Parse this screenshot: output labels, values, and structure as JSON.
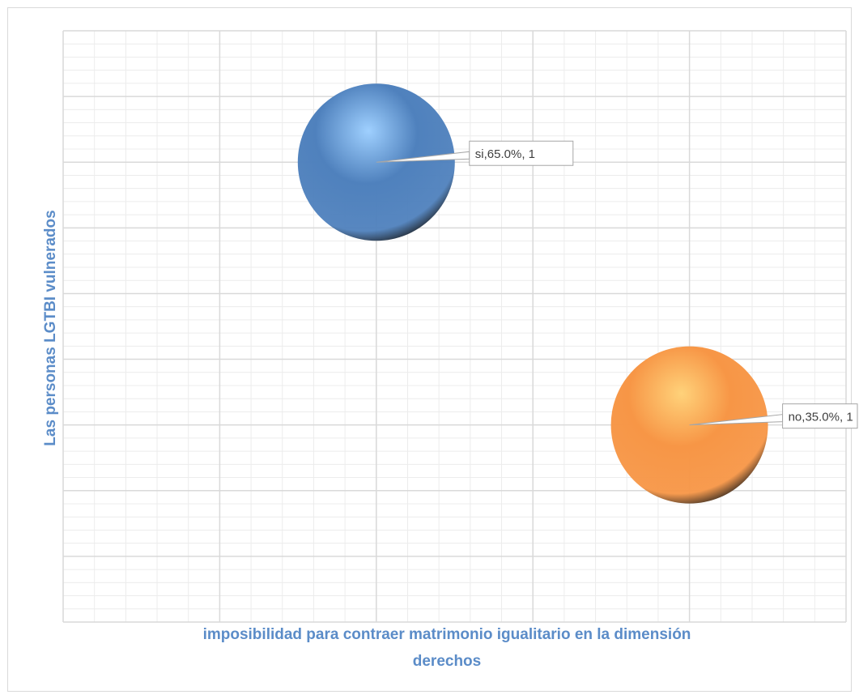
{
  "chart_data": {
    "type": "bubble",
    "xlabel": [
      "imposibilidad para contraer matrimonio igualitario en la dimensión",
      "derechos"
    ],
    "ylabel": "Las personas LGTBI vulnerados",
    "xlim": [
      0,
      5
    ],
    "ylim": [
      0,
      9
    ],
    "grid": true,
    "series": [
      {
        "category": "si",
        "x": 2,
        "y": 7,
        "value": 65.0,
        "size": 1,
        "label": "si,65.0%, 1",
        "color": "#4f81bd",
        "highlight": "#9fd0ff"
      },
      {
        "category": "no",
        "x": 4,
        "y": 3,
        "value": 35.0,
        "size": 1,
        "label": "no,35.0%, 1",
        "color": "#f79646",
        "highlight": "#ffd27a"
      }
    ]
  }
}
